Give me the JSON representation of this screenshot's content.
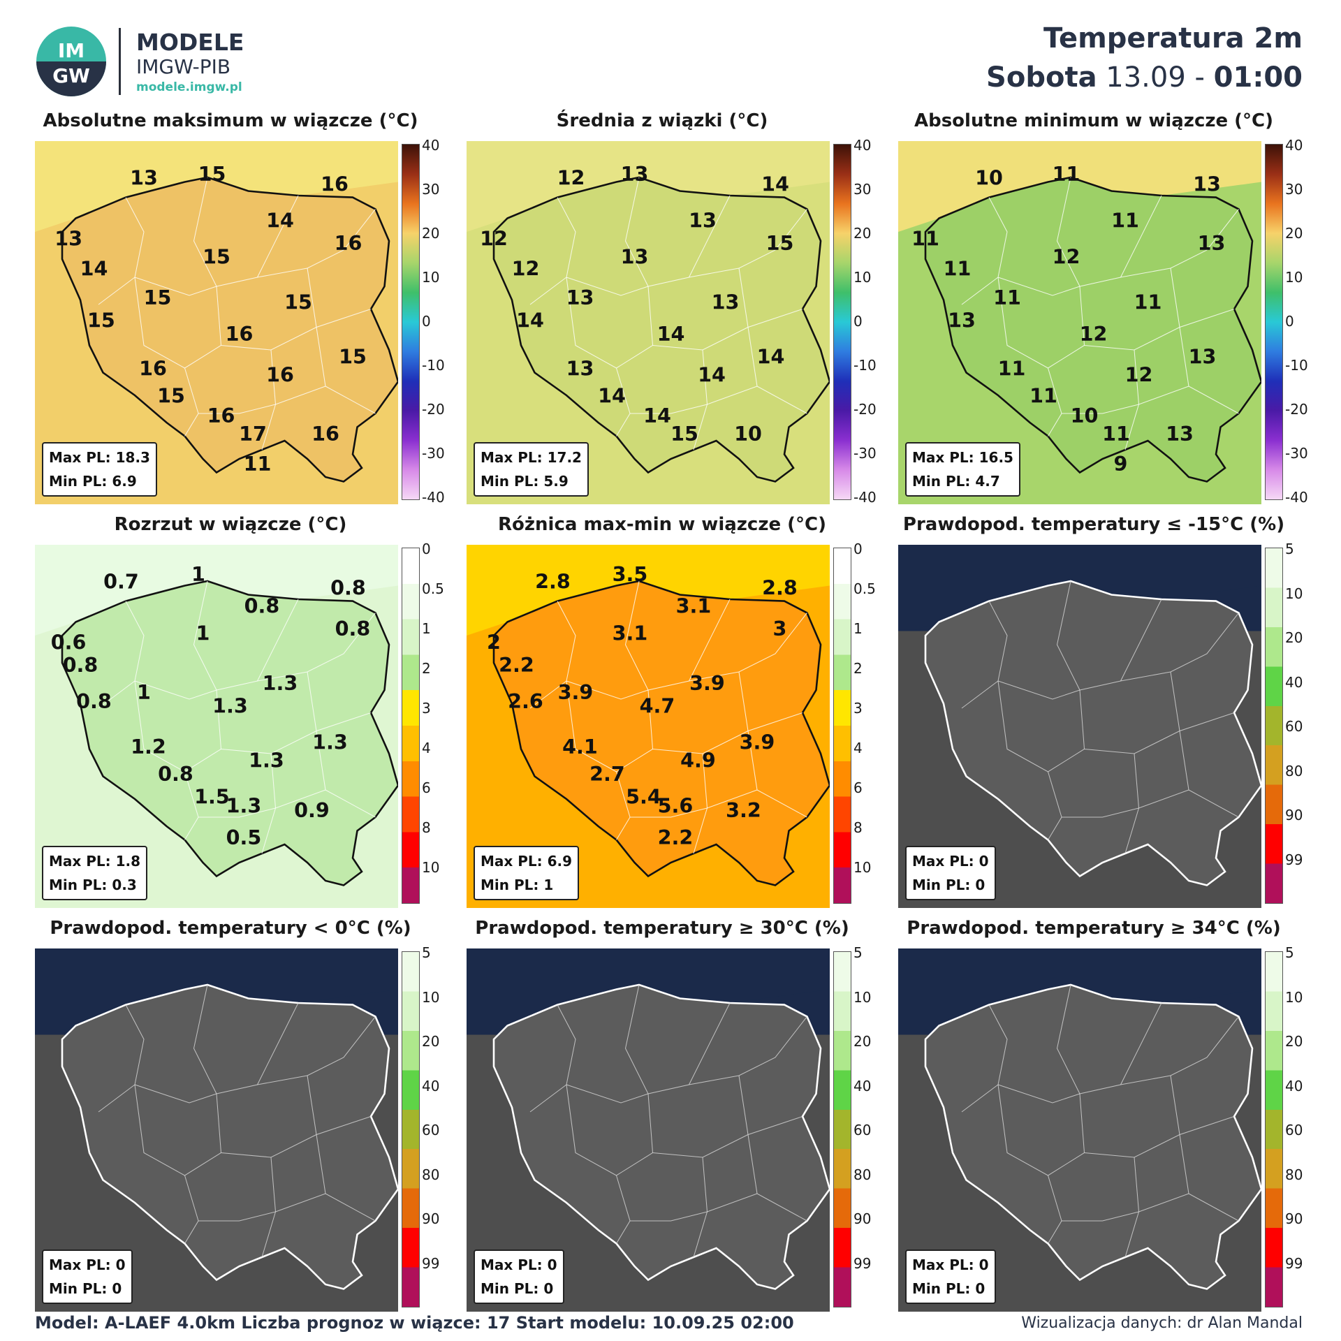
{
  "header": {
    "brand_title": "MODELE",
    "brand_sub": "IMGW-PIB",
    "brand_url": "modele.imgw.pl",
    "logo_top": "IM",
    "logo_bottom": "GW",
    "title": "Temperatura 2m",
    "day": "Sobota",
    "date": "13.09 -",
    "time": "01:00"
  },
  "scales": {
    "temp": {
      "ticks": [
        "40",
        "30",
        "20",
        "10",
        "0",
        "-10",
        "-20",
        "-30",
        "-40"
      ],
      "colors": [
        "#3d1208",
        "#9a2f16",
        "#e9741f",
        "#f7d26a",
        "#a8d56b",
        "#3fbf6a",
        "#29c9d6",
        "#2f7de0",
        "#1f2fb8",
        "#4a1aa6",
        "#8a2fd0",
        "#d78ae8",
        "#f6d8f6"
      ]
    },
    "spread": {
      "ticks": [
        "0",
        "0.5",
        "1",
        "2",
        "3",
        "4",
        "6",
        "8",
        "10"
      ],
      "colors": [
        "#ffffff",
        "#eefbe8",
        "#d8f5c8",
        "#aee88c",
        "#ffe600",
        "#ffbf00",
        "#ff8c00",
        "#ff4500",
        "#ff0000",
        "#b0105a"
      ]
    },
    "prob": {
      "ticks": [
        "5",
        "10",
        "20",
        "40",
        "60",
        "80",
        "90",
        "99"
      ],
      "colors": [
        "#eefbe8",
        "#d8f5c8",
        "#aee88c",
        "#5fd447",
        "#a3b52c",
        "#d4a020",
        "#e56a0a",
        "#ff0000",
        "#b0105a"
      ]
    }
  },
  "panels": [
    {
      "title": "Absolutne maksimum w wiązcze (°C)",
      "scale": "temp",
      "stat_max": "Max PL: 18.3",
      "stat_min": "Min PL: 6.9",
      "labels": [
        "13",
        "15",
        "16",
        "13",
        "14",
        "16",
        "14",
        "15",
        "15",
        "15",
        "15",
        "16",
        "16",
        "15",
        "16",
        "15",
        "16",
        "17",
        "16",
        "11"
      ]
    },
    {
      "title": "Średnia z wiązki (°C)",
      "scale": "temp",
      "stat_max": "Max PL: 17.2",
      "stat_min": "Min PL: 5.9",
      "labels": [
        "12",
        "13",
        "14",
        "12",
        "13",
        "15",
        "12",
        "13",
        "13",
        "13",
        "14",
        "14",
        "13",
        "14",
        "14",
        "14",
        "14",
        "15",
        "10"
      ]
    },
    {
      "title": "Absolutne minimum w wiązcze (°C)",
      "scale": "temp",
      "stat_max": "Max PL: 16.5",
      "stat_min": "Min PL: 4.7",
      "labels": [
        "10",
        "11",
        "13",
        "11",
        "11",
        "13",
        "11",
        "12",
        "11",
        "11",
        "13",
        "12",
        "11",
        "13",
        "12",
        "11",
        "10",
        "11",
        "13",
        "9"
      ]
    },
    {
      "title": "Rozrzut w wiązcze (°C)",
      "scale": "spread",
      "stat_max": "Max PL: 1.8",
      "stat_min": "Min PL: 0.3",
      "labels": [
        "0.7",
        "1",
        "0.8",
        "0.6",
        "0.8",
        "0.8",
        "0.8",
        "1",
        "1",
        "1.3",
        "0.8",
        "1.3",
        "1.2",
        "1.3",
        "1.3",
        "0.8",
        "1.5",
        "1.3",
        "0.9",
        "0.5"
      ]
    },
    {
      "title": "Różnica max-min w wiązcze (°C)",
      "scale": "spread",
      "stat_max": "Max PL: 6.9",
      "stat_min": "Min PL: 1",
      "labels": [
        "2.8",
        "3.5",
        "2.8",
        "2",
        "3.1",
        "3",
        "2.2",
        "3.1",
        "3.9",
        "3.9",
        "2.6",
        "4.7",
        "4.1",
        "3.9",
        "4.9",
        "2.7",
        "5.4",
        "5.6",
        "3.2",
        "2.2"
      ]
    },
    {
      "title": "Prawdopod. temperatury ≤ -15°C (%)",
      "scale": "prob",
      "stat_max": "Max PL: 0",
      "stat_min": "Min PL: 0",
      "labels": []
    },
    {
      "title": "Prawdopod. temperatury < 0°C (%)",
      "scale": "prob",
      "stat_max": "Max PL: 0",
      "stat_min": "Min PL: 0",
      "labels": []
    },
    {
      "title": "Prawdopod. temperatury ≥ 30°C (%)",
      "scale": "prob",
      "stat_max": "Max PL: 0",
      "stat_min": "Min PL: 0",
      "labels": []
    },
    {
      "title": "Prawdopod. temperatury ≥ 34°C (%)",
      "scale": "prob",
      "stat_max": "Max PL: 0",
      "stat_min": "Min PL: 0",
      "labels": []
    }
  ],
  "footer": {
    "left": "Model: A-LAEF 4.0km   Liczba prognoz w wiązce: 17   Start modelu: 10.09.25  02:00",
    "right": "Wizualizacja danych: dr Alan Mandal"
  }
}
